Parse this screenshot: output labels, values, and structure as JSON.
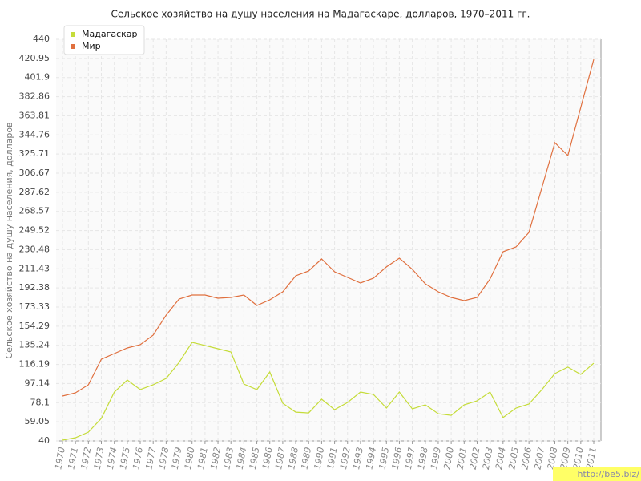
{
  "chart_data": {
    "type": "line",
    "title": "Сельское хозяйство на душу населения на Мадагаскаре, долларов, 1970–2011 гг.",
    "y_label": "Сельское хозяйство на душу населения, долларов",
    "categories": [
      "1970",
      "1971",
      "1972",
      "1973",
      "1974",
      "1975",
      "1976",
      "1977",
      "1978",
      "1979",
      "1980",
      "1981",
      "1982",
      "1983",
      "1984",
      "1985",
      "1986",
      "1987",
      "1988",
      "1989",
      "1990",
      "1991",
      "1992",
      "1993",
      "1994",
      "1995",
      "1996",
      "1997",
      "1998",
      "1999",
      "2000",
      "2001",
      "2002",
      "2003",
      "2004",
      "2005",
      "2006",
      "2007",
      "2008",
      "2009",
      "2010",
      "2011"
    ],
    "series": [
      {
        "name": "Мадагаскар",
        "color": "#c5dc3a",
        "values": [
          40.8,
          43.2,
          48.8,
          62.4,
          88.7,
          100.7,
          91.1,
          95.9,
          102.3,
          118.2,
          138.2,
          135,
          131.8,
          128.6,
          96.7,
          91.1,
          108.7,
          77.5,
          68.7,
          67.9,
          81.5,
          71.1,
          78.3,
          88.7,
          86.3,
          72.7,
          88.7,
          71.9,
          75.9,
          67.1,
          65.5,
          75.9,
          79.9,
          88.7,
          63.2,
          72.7,
          76.7,
          91.1,
          107.1,
          113.5,
          106.3,
          117.4
        ]
      },
      {
        "name": "Мир",
        "color": "#e0703f",
        "values": [
          84.7,
          87.9,
          95.9,
          121.4,
          127,
          132.6,
          135.8,
          145.4,
          165.3,
          181.3,
          185.3,
          185.3,
          182.1,
          182.9,
          185.3,
          174.9,
          180.5,
          188.5,
          204.5,
          209.3,
          221.2,
          208.5,
          202.9,
          197.3,
          202.1,
          213.3,
          222,
          210.9,
          196.5,
          188.5,
          182.9,
          179.7,
          182.9,
          201.3,
          228.4,
          233.2,
          247.6,
          292.3,
          337,
          324.2,
          372.1,
          420
        ]
      }
    ],
    "ylim": [
      40,
      440
    ],
    "yticks": [
      40,
      59.05,
      78.1,
      97.14,
      116.19,
      135.24,
      154.29,
      173.33,
      192.38,
      211.43,
      230.48,
      249.52,
      268.57,
      287.62,
      306.67,
      325.71,
      344.76,
      363.81,
      382.86,
      401.9,
      420.95,
      440
    ],
    "grid": true,
    "legend": "top-left",
    "watermark": "http://be5.biz/"
  }
}
